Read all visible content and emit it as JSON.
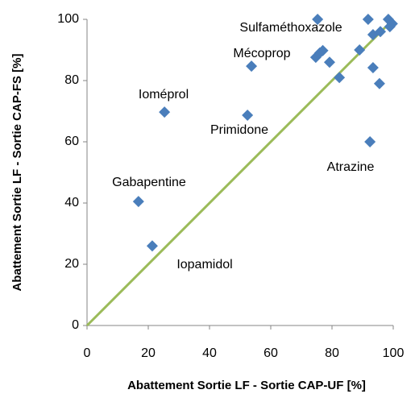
{
  "chart_data": {
    "type": "scatter",
    "x_label": "Abattement Sortie LF - Sortie CAP-UF [%]",
    "y_label": "Abattement Sortie LF - Sortie CAP-FS [%]",
    "x": [
      16.8,
      21.3,
      25.3,
      52.4,
      53.7,
      75.3,
      74.7,
      76,
      77,
      79.2,
      82.4,
      89,
      91.8,
      92.4,
      93.4,
      93.4,
      95.5,
      95.8,
      98.4,
      98.9,
      99.7
    ],
    "values": [
      40.5,
      26,
      69.7,
      68.7,
      84.7,
      100,
      87.6,
      89,
      89.8,
      86,
      81,
      90,
      100,
      60,
      84.2,
      95,
      79,
      96,
      100,
      97.6,
      98.6
    ],
    "color": "#4a7ebb",
    "reference_line_color": "#9bbb59",
    "annotations": [
      "Sulfaméthoxazole",
      "Mécoprop",
      "Ioméprol",
      "Primidone",
      "Atrazine",
      "Gabapentine",
      "Iopamidol"
    ],
    "xlim": [
      0,
      100
    ],
    "ylim": [
      0,
      100
    ],
    "xticks": [
      0,
      20,
      40,
      60,
      80,
      100
    ],
    "yticks": [
      0,
      20,
      40,
      60,
      80,
      100
    ],
    "grid": false
  }
}
